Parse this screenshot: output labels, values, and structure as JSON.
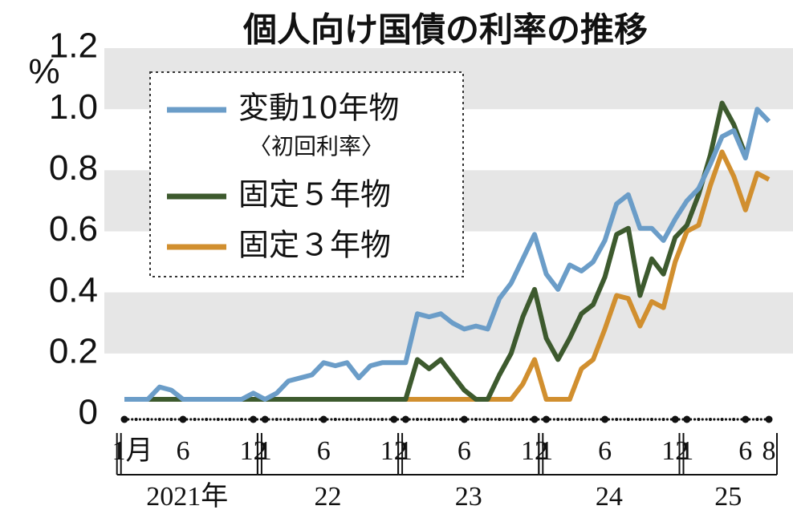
{
  "chart_data": {
    "type": "line",
    "title": "個人向け国債の利率の推移",
    "y_unit": "%",
    "categories": [
      "1月",
      null,
      null,
      null,
      null,
      "6",
      null,
      null,
      null,
      null,
      null,
      "12",
      "1",
      null,
      null,
      null,
      null,
      "6",
      null,
      null,
      null,
      null,
      null,
      "12",
      "1",
      null,
      null,
      null,
      null,
      "6",
      null,
      null,
      null,
      null,
      null,
      "12",
      "1",
      null,
      null,
      null,
      null,
      "6",
      null,
      null,
      null,
      null,
      null,
      "12",
      "1",
      null,
      null,
      null,
      null,
      "6",
      null,
      "8"
    ],
    "years": [
      "2021年",
      "22",
      "23",
      "24",
      "25"
    ],
    "series": [
      {
        "name": "変動10年物",
        "note": "〈初回利率〉",
        "color": "#6b9dc8",
        "values": [
          0.05,
          0.05,
          0.05,
          0.09,
          0.08,
          0.05,
          0.05,
          0.05,
          0.05,
          0.05,
          0.05,
          0.07,
          0.05,
          0.07,
          0.11,
          0.12,
          0.13,
          0.17,
          0.16,
          0.17,
          0.12,
          0.16,
          0.17,
          0.17,
          0.17,
          0.33,
          0.32,
          0.33,
          0.3,
          0.28,
          0.29,
          0.28,
          0.38,
          0.43,
          0.51,
          0.59,
          0.46,
          0.41,
          0.49,
          0.47,
          0.5,
          0.57,
          0.69,
          0.72,
          0.61,
          0.61,
          0.57,
          0.64,
          0.7,
          0.74,
          0.82,
          0.91,
          0.93,
          0.84,
          1.0,
          0.96
        ]
      },
      {
        "name": "固定５年物",
        "color": "#3d5a2e",
        "values": [
          0.05,
          0.05,
          0.05,
          0.05,
          0.05,
          0.05,
          0.05,
          0.05,
          0.05,
          0.05,
          0.05,
          0.05,
          0.05,
          0.05,
          0.05,
          0.05,
          0.05,
          0.05,
          0.05,
          0.05,
          0.05,
          0.05,
          0.05,
          0.05,
          0.05,
          0.18,
          0.15,
          0.18,
          0.13,
          0.08,
          0.05,
          0.05,
          0.13,
          0.2,
          0.32,
          0.41,
          0.25,
          0.18,
          0.25,
          0.33,
          0.36,
          0.45,
          0.59,
          0.61,
          0.39,
          0.51,
          0.46,
          0.58,
          0.62,
          0.72,
          0.85,
          1.02,
          0.95,
          0.85,
          null,
          null
        ]
      },
      {
        "name": "固定３年物",
        "color": "#d18f2f",
        "values": [
          0.05,
          0.05,
          0.05,
          0.05,
          0.05,
          0.05,
          0.05,
          0.05,
          0.05,
          0.05,
          0.05,
          0.05,
          0.05,
          0.05,
          0.05,
          0.05,
          0.05,
          0.05,
          0.05,
          0.05,
          0.05,
          0.05,
          0.05,
          0.05,
          0.05,
          0.05,
          0.05,
          0.05,
          0.05,
          0.05,
          0.05,
          0.05,
          0.05,
          0.05,
          0.1,
          0.18,
          0.05,
          0.05,
          0.05,
          0.15,
          0.18,
          0.28,
          0.39,
          0.38,
          0.29,
          0.37,
          0.35,
          0.5,
          0.6,
          0.62,
          0.75,
          0.86,
          0.78,
          0.67,
          0.79,
          0.77
        ]
      }
    ],
    "ylim": [
      0,
      1.2
    ],
    "yticks": [
      0,
      0.2,
      0.4,
      0.6,
      0.8,
      {
        "value": 1,
        "label": "1.0"
      },
      1.2
    ],
    "grid": "bands"
  }
}
